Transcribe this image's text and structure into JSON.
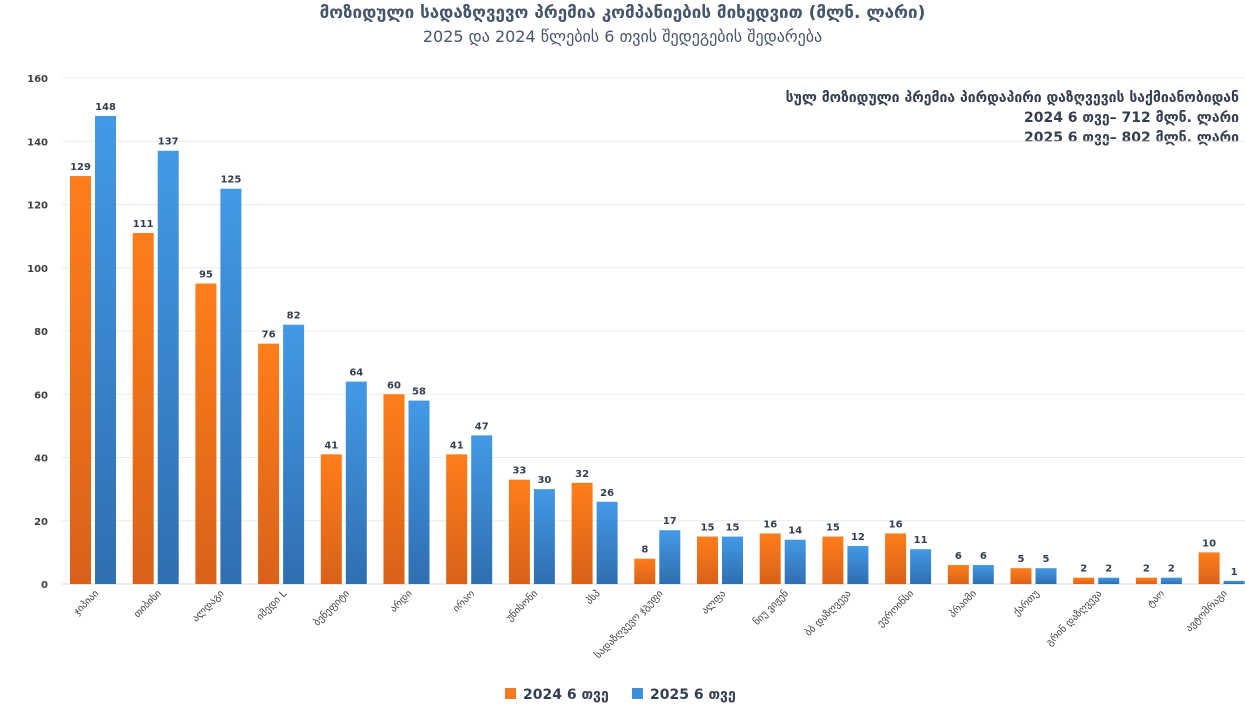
{
  "chart_data": {
    "type": "bar",
    "title": "მოზიდული სადაზღვევო პრემია  კომპანიების მიხედვით (მლნ. ლარი)",
    "subtitle": "2025 და 2024 წლების 6 თვის შედეგების შედარება",
    "annotation": [
      "სულ მოზიდული პრემია პირდაპირი დაზღვევის საქმიანობიდან",
      "2024 6 თვე– 712 მლნ. ლარი",
      "2025 6 თვე– 802 მლნ. ლარი"
    ],
    "categories": [
      "ჯიპიაი",
      "თიბისი",
      "ალდაგი",
      "იმედი L",
      "ბენეფიტი",
      "არდი",
      "ირაო",
      "უნისონი",
      "პსპ",
      "სადაზღვევო ჯგუფი",
      "ალფა",
      "ნიუ ვიჟენ",
      "ბბ დაზღვევა",
      "ევროინსი",
      "პრაიმი",
      "ქართუ",
      "გრინ დაზღვევა",
      "ტაო",
      "ავტომრაგი"
    ],
    "series": [
      {
        "name": "2024 6 თვე",
        "color": "#f47a1f",
        "values": [
          129,
          111,
          95,
          76,
          41,
          60,
          41,
          33,
          32,
          8,
          15,
          16,
          15,
          16,
          6,
          5,
          2,
          2,
          10
        ]
      },
      {
        "name": "2025 6 თვე",
        "color": "#3d8fd9",
        "values": [
          148,
          137,
          125,
          82,
          64,
          58,
          47,
          30,
          26,
          17,
          15,
          14,
          12,
          11,
          6,
          5,
          2,
          2,
          1
        ]
      }
    ],
    "ylim": [
      0,
      160
    ],
    "yticks": [
      0,
      20,
      40,
      60,
      80,
      100,
      120,
      140,
      160
    ],
    "grid": true,
    "legend": "bottom"
  }
}
